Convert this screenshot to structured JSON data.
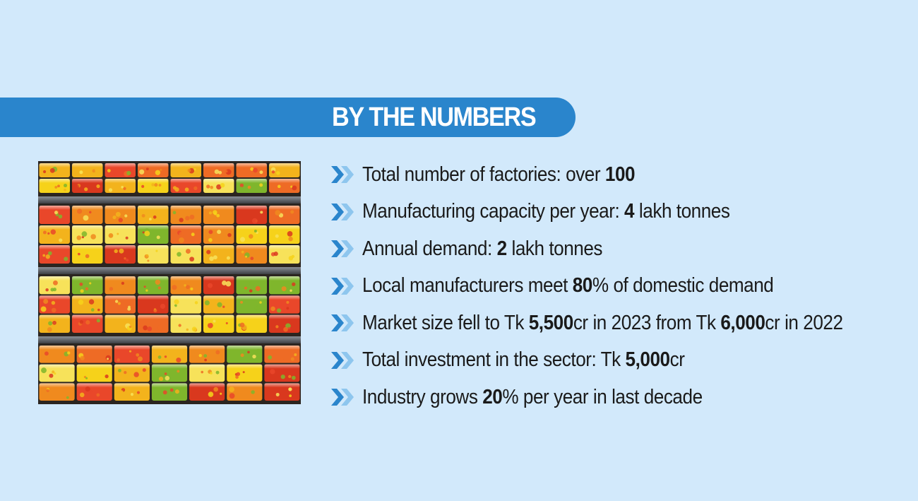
{
  "banner": {
    "title": "BY THE NUMBERS"
  },
  "colors": {
    "background": "#d2e9fb",
    "banner": "#2a85cc",
    "chevron_dark": "#2a85cc",
    "chevron_light": "#8ec6ee"
  },
  "facts": [
    {
      "pre": "Total number of factories: over ",
      "bold": "100",
      "post": ""
    },
    {
      "pre": "Manufacturing capacity per year: ",
      "bold": "4",
      "post": " lakh tonnes"
    },
    {
      "pre": "Annual demand: ",
      "bold": "2",
      "post": " lakh tonnes"
    },
    {
      "pre": "Local manufacturers meet ",
      "bold": "80",
      "post": "% of domestic demand"
    },
    {
      "pre": "Market size fell to Tk ",
      "bold": "5,500",
      "post": "cr in 2023 from Tk ",
      "bold2": "6,000",
      "post2": "cr in 2022"
    },
    {
      "pre": "Total investment in the sector: Tk ",
      "bold": "5,000",
      "post": "cr"
    },
    {
      "pre": "Industry grows ",
      "bold": "20",
      "post": "% per year in last decade"
    }
  ]
}
